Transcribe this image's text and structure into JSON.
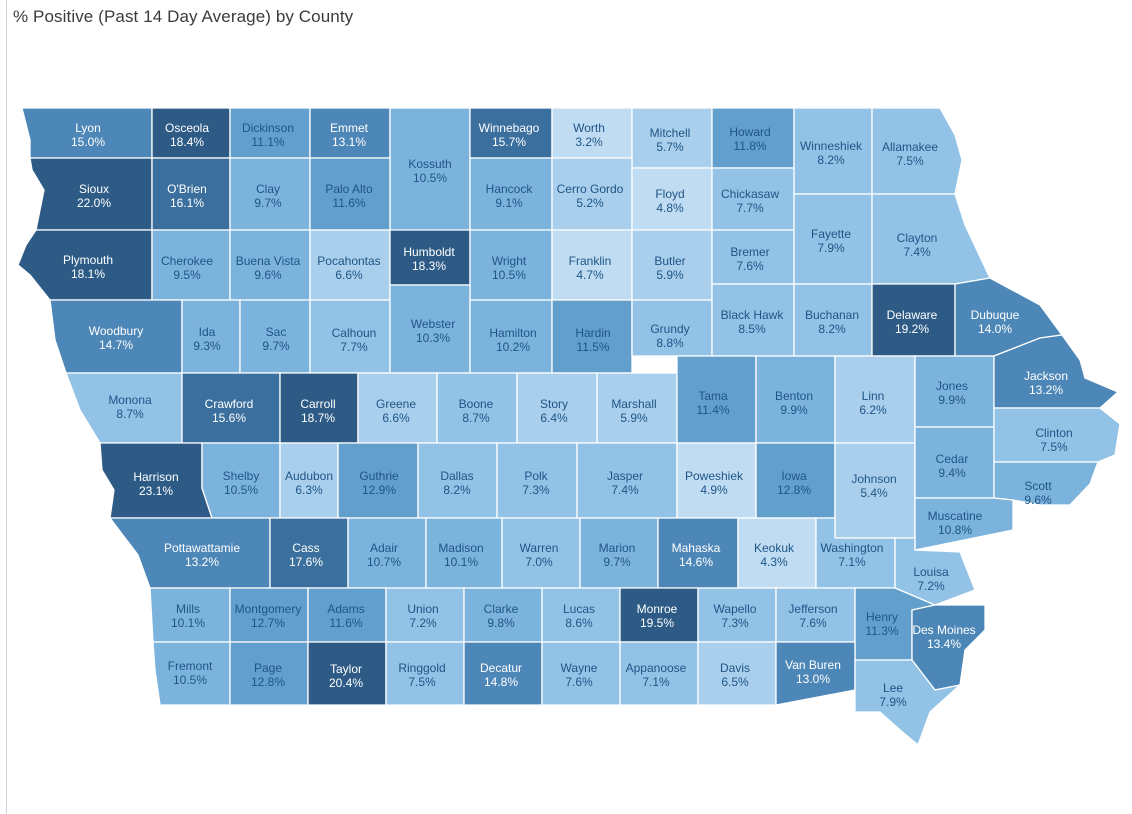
{
  "title": "% Positive (Past 14 Day Average) by County",
  "colors": {
    "scale": [
      "#bfdcf2",
      "#a9cfec",
      "#92c2e6",
      "#7cb3dd",
      "#639fcd",
      "#4d87b7",
      "#3b6f9d",
      "#2d5b86"
    ],
    "label_dark": "#1f5586",
    "label_light": "#ffffff"
  },
  "counties": [
    {
      "name": "Lyon",
      "value": "15.0%"
    },
    {
      "name": "Osceola",
      "value": "18.4%"
    },
    {
      "name": "Dickinson",
      "value": "11.1%"
    },
    {
      "name": "Emmet",
      "value": "13.1%"
    },
    {
      "name": "Kossuth",
      "value": "10.5%"
    },
    {
      "name": "Winnebago",
      "value": "15.7%"
    },
    {
      "name": "Worth",
      "value": "3.2%"
    },
    {
      "name": "Mitchell",
      "value": "5.7%"
    },
    {
      "name": "Howard",
      "value": "11.8%"
    },
    {
      "name": "Winneshiek",
      "value": "8.2%"
    },
    {
      "name": "Allamakee",
      "value": "7.5%"
    },
    {
      "name": "Sioux",
      "value": "22.0%"
    },
    {
      "name": "O'Brien",
      "value": "16.1%"
    },
    {
      "name": "Clay",
      "value": "9.7%"
    },
    {
      "name": "Palo Alto",
      "value": "11.6%"
    },
    {
      "name": "Hancock",
      "value": "9.1%"
    },
    {
      "name": "Cerro Gordo",
      "value": "5.2%"
    },
    {
      "name": "Floyd",
      "value": "4.8%"
    },
    {
      "name": "Chickasaw",
      "value": "7.7%"
    },
    {
      "name": "Plymouth",
      "value": "18.1%"
    },
    {
      "name": "Cherokee",
      "value": "9.5%"
    },
    {
      "name": "Buena Vista",
      "value": "9.6%"
    },
    {
      "name": "Pocahontas",
      "value": "6.6%"
    },
    {
      "name": "Humboldt",
      "value": "18.3%"
    },
    {
      "name": "Wright",
      "value": "10.5%"
    },
    {
      "name": "Franklin",
      "value": "4.7%"
    },
    {
      "name": "Butler",
      "value": "5.9%"
    },
    {
      "name": "Bremer",
      "value": "7.6%"
    },
    {
      "name": "Fayette",
      "value": "7.9%"
    },
    {
      "name": "Clayton",
      "value": "7.4%"
    },
    {
      "name": "Woodbury",
      "value": "14.7%"
    },
    {
      "name": "Ida",
      "value": "9.3%"
    },
    {
      "name": "Sac",
      "value": "9.7%"
    },
    {
      "name": "Calhoun",
      "value": "7.7%"
    },
    {
      "name": "Webster",
      "value": "10.3%"
    },
    {
      "name": "Hamilton",
      "value": "10.2%"
    },
    {
      "name": "Hardin",
      "value": "11.5%"
    },
    {
      "name": "Grundy",
      "value": "8.8%"
    },
    {
      "name": "Black Hawk",
      "value": "8.5%"
    },
    {
      "name": "Buchanan",
      "value": "8.2%"
    },
    {
      "name": "Delaware",
      "value": "19.2%"
    },
    {
      "name": "Dubuque",
      "value": "14.0%"
    },
    {
      "name": "Monona",
      "value": "8.7%"
    },
    {
      "name": "Crawford",
      "value": "15.6%"
    },
    {
      "name": "Carroll",
      "value": "18.7%"
    },
    {
      "name": "Greene",
      "value": "6.6%"
    },
    {
      "name": "Boone",
      "value": "8.7%"
    },
    {
      "name": "Story",
      "value": "6.4%"
    },
    {
      "name": "Marshall",
      "value": "5.9%"
    },
    {
      "name": "Tama",
      "value": "11.4%"
    },
    {
      "name": "Benton",
      "value": "9.9%"
    },
    {
      "name": "Linn",
      "value": "6.2%"
    },
    {
      "name": "Jones",
      "value": "9.9%"
    },
    {
      "name": "Jackson",
      "value": "13.2%"
    },
    {
      "name": "Harrison",
      "value": "23.1%"
    },
    {
      "name": "Shelby",
      "value": "10.5%"
    },
    {
      "name": "Audubon",
      "value": "6.3%"
    },
    {
      "name": "Guthrie",
      "value": "12.9%"
    },
    {
      "name": "Dallas",
      "value": "8.2%"
    },
    {
      "name": "Polk",
      "value": "7.3%"
    },
    {
      "name": "Jasper",
      "value": "7.4%"
    },
    {
      "name": "Poweshiek",
      "value": "4.9%"
    },
    {
      "name": "Iowa",
      "value": "12.8%"
    },
    {
      "name": "Johnson",
      "value": "5.4%"
    },
    {
      "name": "Cedar",
      "value": "9.4%"
    },
    {
      "name": "Clinton",
      "value": "7.5%"
    },
    {
      "name": "Scott",
      "value": "9.6%"
    },
    {
      "name": "Pottawattamie",
      "value": "13.2%"
    },
    {
      "name": "Cass",
      "value": "17.6%"
    },
    {
      "name": "Adair",
      "value": "10.7%"
    },
    {
      "name": "Madison",
      "value": "10.1%"
    },
    {
      "name": "Warren",
      "value": "7.0%"
    },
    {
      "name": "Marion",
      "value": "9.7%"
    },
    {
      "name": "Mahaska",
      "value": "14.6%"
    },
    {
      "name": "Keokuk",
      "value": "4.3%"
    },
    {
      "name": "Washington",
      "value": "7.1%"
    },
    {
      "name": "Muscatine",
      "value": "10.8%"
    },
    {
      "name": "Louisa",
      "value": "7.2%"
    },
    {
      "name": "Mills",
      "value": "10.1%"
    },
    {
      "name": "Montgomery",
      "value": "12.7%"
    },
    {
      "name": "Adams",
      "value": "11.6%"
    },
    {
      "name": "Union",
      "value": "7.2%"
    },
    {
      "name": "Clarke",
      "value": "9.8%"
    },
    {
      "name": "Lucas",
      "value": "8.6%"
    },
    {
      "name": "Monroe",
      "value": "19.5%"
    },
    {
      "name": "Wapello",
      "value": "7.3%"
    },
    {
      "name": "Jefferson",
      "value": "7.6%"
    },
    {
      "name": "Henry",
      "value": "11.3%"
    },
    {
      "name": "Des Moines",
      "value": "13.4%"
    },
    {
      "name": "Fremont",
      "value": "10.5%"
    },
    {
      "name": "Page",
      "value": "12.8%"
    },
    {
      "name": "Taylor",
      "value": "20.4%"
    },
    {
      "name": "Ringgold",
      "value": "7.5%"
    },
    {
      "name": "Decatur",
      "value": "14.8%"
    },
    {
      "name": "Wayne",
      "value": "7.6%"
    },
    {
      "name": "Appanoose",
      "value": "7.1%"
    },
    {
      "name": "Davis",
      "value": "6.5%"
    },
    {
      "name": "Van Buren",
      "value": "13.0%"
    },
    {
      "name": "Lee",
      "value": "7.9%"
    }
  ]
}
